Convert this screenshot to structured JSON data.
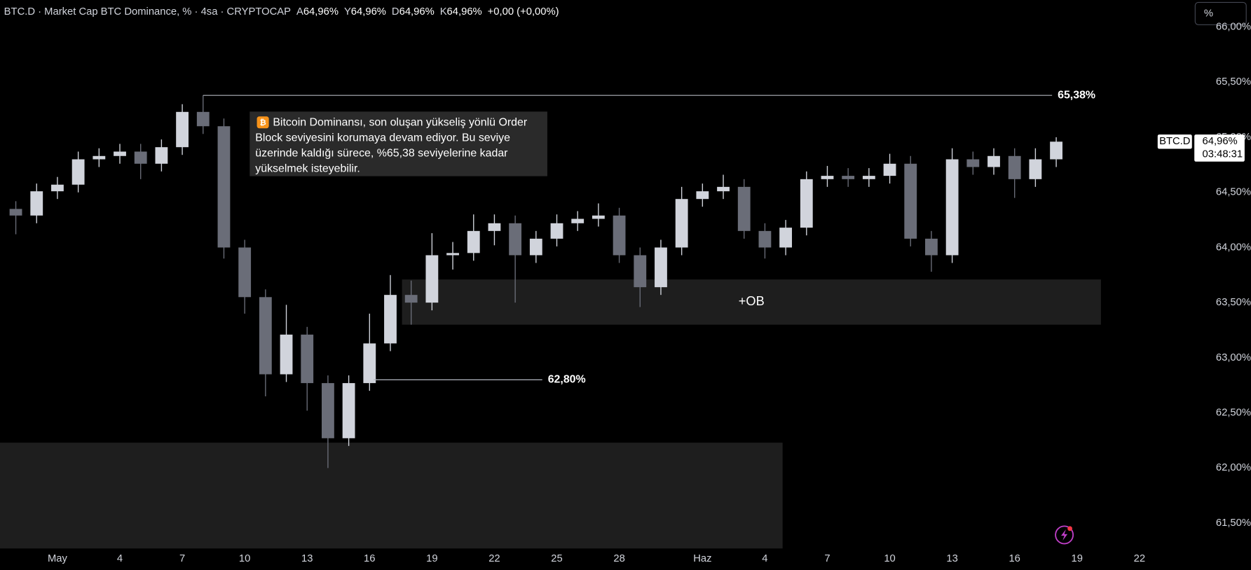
{
  "chart_data": {
    "type": "candlestick",
    "header": {
      "title": "BTC.D · Market Cap BTC Dominance, % · 4sa · CRYPTOCAP",
      "ohlc": [
        {
          "label": "A",
          "value": "64,96%"
        },
        {
          "label": "Y",
          "value": "64,96%"
        },
        {
          "label": "D",
          "value": "64,96%"
        },
        {
          "label": "K",
          "value": "64,96%"
        }
      ],
      "change": "+0,00 (+0,00%)"
    },
    "search": "%",
    "x": [
      -2,
      -1,
      0,
      1,
      2,
      3,
      4,
      5,
      6,
      7,
      8,
      9,
      10,
      11,
      12,
      13,
      14,
      15,
      16,
      17,
      18,
      19,
      20,
      21,
      22,
      23,
      24,
      25,
      26,
      27,
      28,
      29,
      30,
      31,
      32,
      33,
      34,
      35,
      36,
      37,
      38,
      39,
      40,
      41,
      42,
      43,
      44,
      45,
      46,
      47,
      48
    ],
    "open": [
      64.35,
      64.29,
      64.51,
      64.57,
      64.8,
      64.83,
      64.87,
      64.76,
      64.91,
      65.23,
      65.1,
      64.0,
      63.55,
      62.85,
      63.21,
      62.77,
      62.27,
      62.77,
      63.13,
      63.57,
      63.5,
      63.93,
      63.95,
      64.15,
      64.22,
      63.93,
      64.08,
      64.22,
      64.26,
      64.29,
      63.93,
      63.64,
      64.0,
      64.44,
      64.51,
      64.55,
      64.15,
      64.0,
      64.18,
      64.62,
      64.65,
      64.62,
      64.65,
      64.76,
      64.08,
      63.93,
      64.8,
      64.73,
      64.83,
      64.62,
      64.8
    ],
    "high": [
      64.42,
      64.58,
      64.64,
      64.87,
      64.9,
      64.94,
      64.94,
      64.98,
      65.3,
      65.38,
      65.17,
      64.07,
      63.62,
      63.48,
      63.28,
      62.84,
      62.84,
      63.4,
      63.75,
      63.7,
      64.13,
      64.05,
      64.3,
      64.3,
      64.29,
      64.15,
      64.3,
      64.33,
      64.4,
      64.36,
      64.0,
      64.07,
      64.55,
      64.58,
      64.66,
      64.62,
      64.22,
      64.25,
      64.69,
      64.74,
      64.72,
      64.72,
      64.85,
      64.83,
      64.15,
      64.9,
      64.87,
      64.9,
      64.9,
      64.9,
      65.0
    ],
    "low": [
      64.12,
      64.22,
      64.44,
      64.5,
      64.73,
      64.76,
      64.62,
      64.69,
      64.84,
      65.03,
      63.9,
      63.4,
      62.65,
      62.78,
      62.52,
      62.0,
      62.2,
      62.7,
      63.06,
      63.3,
      63.43,
      63.8,
      63.88,
      64.02,
      63.5,
      63.86,
      64.01,
      64.15,
      64.19,
      63.86,
      63.46,
      63.57,
      63.93,
      64.37,
      64.44,
      64.08,
      63.9,
      63.93,
      64.11,
      64.55,
      64.55,
      64.55,
      64.58,
      64.01,
      63.78,
      63.86,
      64.66,
      64.66,
      64.45,
      64.55,
      64.73
    ],
    "close": [
      64.29,
      64.51,
      64.57,
      64.8,
      64.83,
      64.87,
      64.76,
      64.91,
      65.23,
      65.1,
      64.0,
      63.55,
      62.85,
      63.21,
      62.77,
      62.27,
      62.77,
      63.13,
      63.57,
      63.5,
      63.93,
      63.95,
      64.15,
      64.22,
      63.93,
      64.08,
      64.22,
      64.26,
      64.29,
      63.93,
      63.64,
      64.0,
      64.44,
      64.51,
      64.55,
      64.15,
      64.0,
      64.18,
      64.62,
      64.65,
      64.62,
      64.65,
      64.76,
      64.08,
      63.93,
      64.8,
      64.73,
      64.83,
      64.62,
      64.8,
      64.96
    ],
    "up_color": "#d1d4dc",
    "down_color": "#6a6d78",
    "xlim": [
      -2.76,
      54.37
    ],
    "xticks": [
      {
        "value": 0,
        "label": "May"
      },
      {
        "value": 3,
        "label": "4"
      },
      {
        "value": 6,
        "label": "7"
      },
      {
        "value": 9,
        "label": "10"
      },
      {
        "value": 12,
        "label": "13"
      },
      {
        "value": 15,
        "label": "16"
      },
      {
        "value": 18,
        "label": "19"
      },
      {
        "value": 21,
        "label": "22"
      },
      {
        "value": 24,
        "label": "25"
      },
      {
        "value": 27,
        "label": "28"
      },
      {
        "value": 31,
        "label": "Haz"
      },
      {
        "value": 34,
        "label": "4"
      },
      {
        "value": 37,
        "label": "7"
      },
      {
        "value": 40,
        "label": "10"
      },
      {
        "value": 43,
        "label": "13"
      },
      {
        "value": 46,
        "label": "16"
      },
      {
        "value": 49,
        "label": "19"
      },
      {
        "value": 52,
        "label": "22"
      }
    ],
    "ylim": [
      61.27,
      66.245
    ],
    "yticks": [
      {
        "value": 61.5,
        "label": "61,50%"
      },
      {
        "value": 62,
        "label": "62,00%"
      },
      {
        "value": 62.5,
        "label": "62,50%"
      },
      {
        "value": 63,
        "label": "63,00%"
      },
      {
        "value": 63.5,
        "label": "63,50%"
      },
      {
        "value": 64,
        "label": "64,00%"
      },
      {
        "value": 64.5,
        "label": "64,50%"
      },
      {
        "value": 65,
        "label": "65,00%"
      },
      {
        "value": 65.5,
        "label": "65,50%"
      },
      {
        "value": 66,
        "label": "66,00%"
      }
    ],
    "grid": false,
    "levels": [
      {
        "value": 65.38,
        "label": "65,38%",
        "x": [
          7.0,
          47.8
        ]
      },
      {
        "value": 62.8,
        "label": "62,80%",
        "x": [
          15.2,
          23.3
        ]
      }
    ],
    "zones": [
      {
        "label": "+OB",
        "y": [
          63.3,
          63.71
        ],
        "x": [
          16.56,
          50.15
        ]
      },
      {
        "y": [
          61.27,
          62.23
        ],
        "x": [
          -2.76,
          34.85
        ]
      }
    ],
    "note": [
      "Bitcoin Dominansı, son oluşan yükseliş yönlü Order",
      "Block seviyesini korumaya devam ediyor. Bu seviye",
      "üzerinde kaldığı sürece, %65,38 seviyelerine kadar",
      "yükselmek isteyebilir."
    ],
    "price_tag": {
      "symbol": "BTC.D",
      "value": 64.96,
      "label": "64,96%",
      "countdown": "03:48:31"
    }
  }
}
